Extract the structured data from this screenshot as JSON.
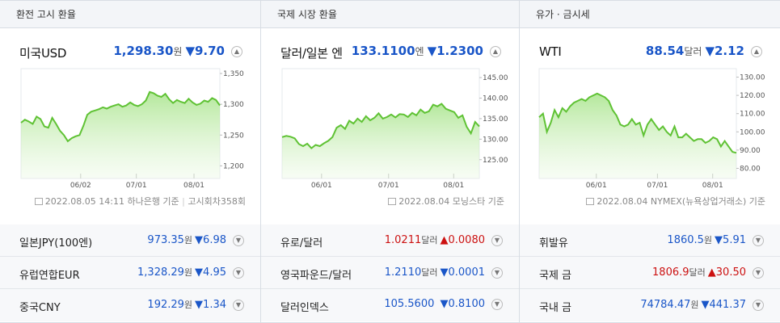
{
  "panels": [
    {
      "header": "환전 고시 환율",
      "name": "미국USD",
      "value": "1,298.30",
      "unit": "원",
      "change": "▼9.70",
      "footer_date": "2022.08.05 14:11",
      "footer_src": "하나은행 기준",
      "footer_extra": "고시회차358회",
      "rows": [
        {
          "name": "일본JPY(100엔)",
          "value": "973.35",
          "unit": "원",
          "change": "▼6.98",
          "up": false
        },
        {
          "name": "유럽연합EUR",
          "value": "1,328.29",
          "unit": "원",
          "change": "▼4.95",
          "up": false
        },
        {
          "name": "중국CNY",
          "value": "192.29",
          "unit": "원",
          "change": "▼1.34",
          "up": false
        }
      ]
    },
    {
      "header": "국제 시장 환율",
      "name": "달러/일본 엔",
      "value": "133.1100",
      "unit": "엔",
      "change": "▼1.2300",
      "footer_date": "2022.08.04",
      "footer_src": "모닝스타 기준",
      "footer_extra": "",
      "rows": [
        {
          "name": "유로/달러",
          "value": "1.0211",
          "unit": "달러",
          "change": "▲0.0080",
          "up": true
        },
        {
          "name": "영국파운드/달러",
          "value": "1.2110",
          "unit": "달러",
          "change": "▼0.0001",
          "up": false
        },
        {
          "name": "달러인덱스",
          "value": "105.5600",
          "unit": "",
          "change": "▼0.8100",
          "up": false
        }
      ]
    },
    {
      "header": "유가 · 금시세",
      "name": "WTI",
      "value": "88.54",
      "unit": "달러",
      "change": "▼2.12",
      "footer_date": "2022.08.04",
      "footer_src": "NYMEX(뉴욕상업거래소) 기준",
      "footer_extra": "",
      "rows": [
        {
          "name": "휘발유",
          "value": "1860.5",
          "unit": "원",
          "change": "▼5.91",
          "up": false
        },
        {
          "name": "국제 금",
          "value": "1806.9",
          "unit": "달러",
          "change": "▲30.50",
          "up": true
        },
        {
          "name": "국내 금",
          "value": "74784.47",
          "unit": "원",
          "change": "▼441.37",
          "up": false
        }
      ]
    }
  ],
  "chart_data": [
    {
      "type": "area",
      "ylim": [
        1190,
        1350
      ],
      "yticks": [
        "1,350",
        "1,300",
        "1,250",
        "1,200"
      ],
      "ytick_values": [
        1350,
        1300,
        1250,
        1200
      ],
      "xticks": [
        "06/02",
        "07/01",
        "08/01"
      ],
      "xtick_pos": [
        0.3,
        0.58,
        0.87
      ],
      "values": [
        1270,
        1275,
        1272,
        1268,
        1280,
        1276,
        1264,
        1262,
        1278,
        1268,
        1257,
        1250,
        1240,
        1245,
        1248,
        1250,
        1265,
        1283,
        1288,
        1290,
        1292,
        1295,
        1293,
        1296,
        1298,
        1300,
        1296,
        1298,
        1303,
        1299,
        1297,
        1300,
        1306,
        1320,
        1318,
        1314,
        1312,
        1317,
        1308,
        1302,
        1307,
        1304,
        1302,
        1309,
        1303,
        1299,
        1301,
        1306,
        1304,
        1310,
        1307,
        1298
      ]
    },
    {
      "type": "area",
      "ylim": [
        122,
        146
      ],
      "yticks": [
        "145.00",
        "140.00",
        "135.00",
        "130.00",
        "125.00"
      ],
      "ytick_values": [
        145,
        140,
        135,
        130,
        125
      ],
      "xticks": [
        "06/01",
        "07/01",
        "08/01"
      ],
      "xtick_pos": [
        0.2,
        0.54,
        0.87
      ],
      "values": [
        130.5,
        130.8,
        130.6,
        130.2,
        128.8,
        128.3,
        128.9,
        127.8,
        128.6,
        128.3,
        129.0,
        129.6,
        130.5,
        132.8,
        133.4,
        132.5,
        134.5,
        133.8,
        135.0,
        134.2,
        135.6,
        134.6,
        135.2,
        136.3,
        135.0,
        135.4,
        136.0,
        135.3,
        136.1,
        136.0,
        135.4,
        136.4,
        135.8,
        137.2,
        136.4,
        136.8,
        138.4,
        138.0,
        138.6,
        137.4,
        137.0,
        136.6,
        135.2,
        135.8,
        133.0,
        131.4,
        134.2,
        133.1
      ]
    },
    {
      "type": "area",
      "ylim": [
        78,
        132
      ],
      "yticks": [
        "130.00",
        "120.00",
        "110.00",
        "100.00",
        "90.00",
        "80.00"
      ],
      "ytick_values": [
        130,
        120,
        110,
        100,
        90,
        80
      ],
      "xticks": [
        "06/01",
        "07/01",
        "08/01"
      ],
      "xtick_pos": [
        0.29,
        0.6,
        0.88
      ],
      "values": [
        108,
        110,
        100,
        105,
        112,
        108,
        113,
        111,
        114,
        116,
        117,
        118,
        117,
        119,
        120,
        121,
        120,
        119,
        117,
        112,
        109,
        104,
        103,
        104,
        107,
        104,
        105,
        98,
        104,
        107,
        104,
        101,
        103,
        100,
        98,
        103,
        97,
        97,
        99,
        97,
        95,
        96,
        96,
        94,
        95,
        97,
        96,
        92,
        95,
        92,
        89,
        88.5
      ]
    }
  ]
}
